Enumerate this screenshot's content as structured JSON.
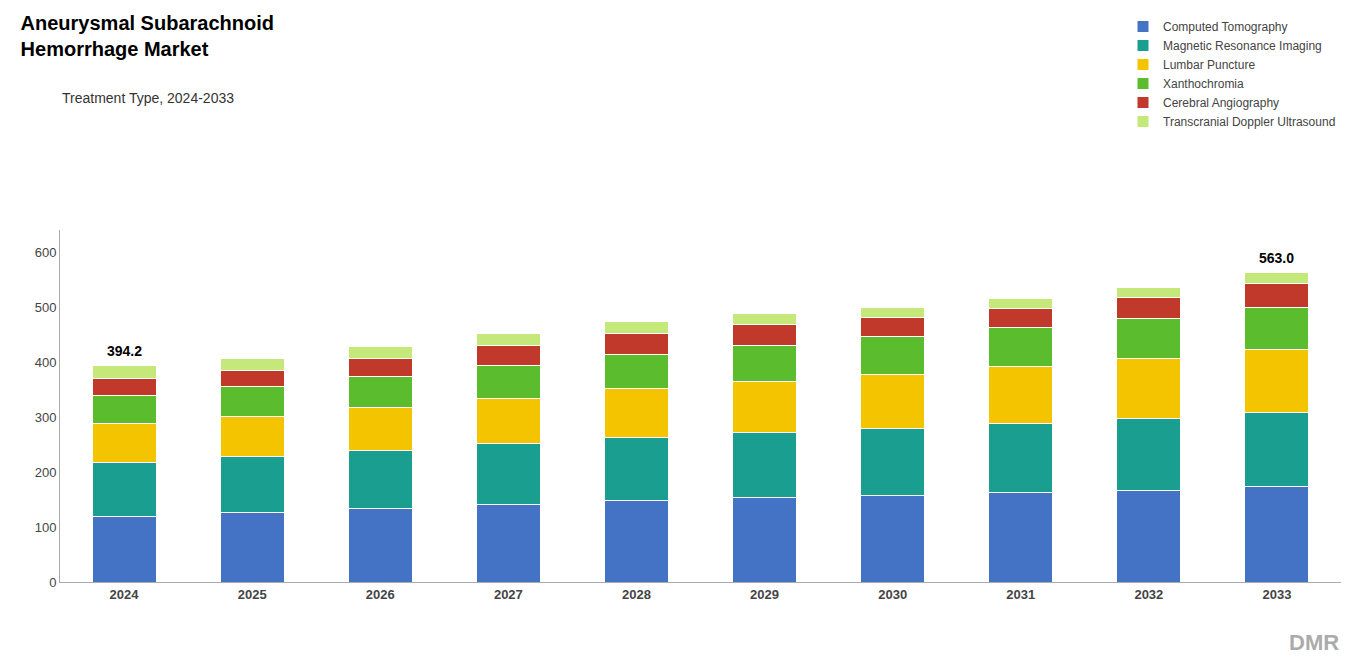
{
  "chart_data": {
    "type": "bar",
    "stacked": true,
    "title": [
      "Aneurysmal Subarachnoid",
      "Hemorrhage Market"
    ],
    "subtitle": "Treatment Type, 2024-2033",
    "categories": [
      "2024",
      "2025",
      "2026",
      "2027",
      "2028",
      "2029",
      "2030",
      "2031",
      "2032",
      "2033"
    ],
    "series": [
      {
        "name": "Computed Tomography",
        "color": "#4472C4",
        "values": [
          120.0,
          127.0,
          134.0,
          141.0,
          148.0,
          153.0,
          158.0,
          162.0,
          167.0,
          173.0
        ]
      },
      {
        "name": "Magnetic Resonance Imaging",
        "color": "#1A9E8F",
        "values": [
          98.0,
          101.0,
          105.0,
          110.0,
          115.0,
          118.0,
          122.0,
          126.0,
          130.0,
          135.0
        ]
      },
      {
        "name": "Lumbar Puncture",
        "color": "#F5C400",
        "values": [
          70.0,
          73.0,
          78.0,
          83.0,
          88.0,
          93.0,
          98.0,
          103.0,
          109.0,
          115.0
        ]
      },
      {
        "name": "Xanthochromia",
        "color": "#5BBD2E",
        "values": [
          52.0,
          54.0,
          57.0,
          60.0,
          63.0,
          66.0,
          68.0,
          71.0,
          74.0,
          77.0
        ]
      },
      {
        "name": "Cerebral Angiography",
        "color": "#C0392B",
        "values": [
          30.0,
          30.0,
          33.0,
          36.0,
          38.0,
          38.0,
          35.0,
          36.0,
          38.0,
          42.0
        ]
      },
      {
        "name": "Transcranial Doppler Ultrasound",
        "color": "#C5E87A",
        "values": [
          24.2,
          21.0,
          21.0,
          21.0,
          21.0,
          21.0,
          19.0,
          18.0,
          17.0,
          21.0
        ]
      }
    ],
    "annotations": [
      {
        "category": "2024",
        "value": 394.2,
        "text": "394.2"
      },
      {
        "category": "2033",
        "value": 563.0,
        "text": "563.0"
      },
      {
        "text": "DMR"
      }
    ],
    "ylim": [
      0,
      640
    ],
    "yticks": [
      0,
      100,
      200,
      300,
      400,
      500,
      600
    ],
    "grid": false,
    "legend": "upper right"
  }
}
